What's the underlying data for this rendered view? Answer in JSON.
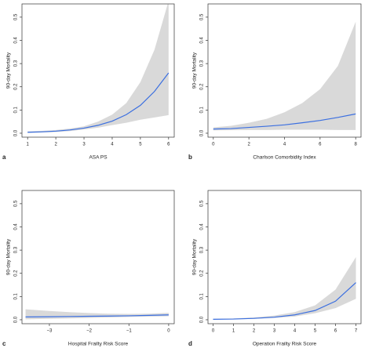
{
  "chart_data": [
    {
      "type": "line",
      "panel_label": "a",
      "x_label": "ASA PS",
      "y_label": "90-day Mortality",
      "color": "#3b6fe0",
      "band_color": "#d9d9d9",
      "x": [
        1,
        1.5,
        2,
        2.5,
        3,
        3.5,
        4,
        4.5,
        5,
        5.5,
        6
      ],
      "values": [
        0.004,
        0.006,
        0.009,
        0.014,
        0.022,
        0.034,
        0.052,
        0.08,
        0.12,
        0.18,
        0.26
      ],
      "upper": [
        0.008,
        0.01,
        0.014,
        0.02,
        0.03,
        0.05,
        0.08,
        0.13,
        0.22,
        0.36,
        0.57
      ],
      "lower": [
        0.001,
        0.003,
        0.005,
        0.009,
        0.016,
        0.024,
        0.035,
        0.045,
        0.058,
        0.068,
        0.078
      ],
      "xlim": [
        0.8,
        6.2
      ],
      "xticks": [
        1,
        2,
        3,
        4,
        5,
        6
      ],
      "ylim": [
        -0.017,
        0.557
      ],
      "yticks": [
        {
          "value": 0,
          "label": "0.0"
        },
        {
          "value": 0.1,
          "label": "0.1"
        },
        {
          "value": 0.2,
          "label": "0.2"
        },
        {
          "value": 0.3,
          "label": "0.3"
        },
        {
          "value": 0.4,
          "label": "0.4"
        },
        {
          "value": 0.5,
          "label": "0.5"
        }
      ]
    },
    {
      "type": "line",
      "panel_label": "b",
      "x_label": "Charlson Comorbidity Index",
      "y_label": "90-day Mortality",
      "color": "#3b6fe0",
      "band_color": "#d9d9d9",
      "x": [
        0,
        1,
        2,
        3,
        4,
        5,
        6,
        7,
        8
      ],
      "values": [
        0.018,
        0.02,
        0.025,
        0.03,
        0.036,
        0.045,
        0.055,
        0.068,
        0.083
      ],
      "upper": [
        0.025,
        0.032,
        0.045,
        0.062,
        0.09,
        0.13,
        0.19,
        0.29,
        0.48
      ],
      "lower": [
        0.012,
        0.013,
        0.014,
        0.014,
        0.015,
        0.015,
        0.015,
        0.014,
        0.014
      ],
      "xlim": [
        -0.3,
        8.3
      ],
      "xticks": [
        0,
        2,
        4,
        6,
        8
      ],
      "ylim": [
        -0.017,
        0.557
      ],
      "yticks": [
        {
          "value": 0,
          "label": "0.0"
        },
        {
          "value": 0.1,
          "label": "0.1"
        },
        {
          "value": 0.2,
          "label": "0.2"
        },
        {
          "value": 0.3,
          "label": "0.3"
        },
        {
          "value": 0.4,
          "label": "0.4"
        },
        {
          "value": 0.5,
          "label": "0.5"
        }
      ]
    },
    {
      "type": "line",
      "panel_label": "c",
      "x_label": "Hospital Frailty Risk Score",
      "y_label": "90-day Mortality",
      "color": "#3b6fe0",
      "band_color": "#d9d9d9",
      "x": [
        -3.6,
        -3,
        -2.5,
        -2,
        -1.5,
        -1,
        -0.5,
        0
      ],
      "values": [
        0.012,
        0.013,
        0.014,
        0.015,
        0.016,
        0.017,
        0.019,
        0.021
      ],
      "upper": [
        0.045,
        0.038,
        0.033,
        0.029,
        0.026,
        0.025,
        0.026,
        0.03
      ],
      "lower": [
        0.002,
        0.004,
        0.006,
        0.008,
        0.01,
        0.012,
        0.014,
        0.015
      ],
      "xlim": [
        -3.69,
        0.14
      ],
      "xticks": [
        {
          "value": -3,
          "label": "−3"
        },
        {
          "value": -2,
          "label": "−2"
        },
        {
          "value": -1,
          "label": "−1"
        },
        0
      ],
      "ylim": [
        -0.017,
        0.557
      ],
      "yticks": [
        {
          "value": 0,
          "label": "0.0"
        },
        {
          "value": 0.1,
          "label": "0.1"
        },
        {
          "value": 0.2,
          "label": "0.2"
        },
        {
          "value": 0.3,
          "label": "0.3"
        },
        {
          "value": 0.4,
          "label": "0.4"
        },
        {
          "value": 0.5,
          "label": "0.5"
        }
      ]
    },
    {
      "type": "line",
      "panel_label": "d",
      "x_label": "Operation Frailty Risk Score",
      "y_label": "90-day Mortality",
      "color": "#3b6fe0",
      "band_color": "#d9d9d9",
      "x": [
        0,
        1,
        2,
        3,
        4,
        5,
        6,
        7
      ],
      "values": [
        0.002,
        0.003,
        0.006,
        0.011,
        0.021,
        0.04,
        0.08,
        0.16
      ],
      "upper": [
        0.004,
        0.006,
        0.01,
        0.018,
        0.033,
        0.062,
        0.13,
        0.27
      ],
      "lower": [
        0.001,
        0.002,
        0.004,
        0.008,
        0.014,
        0.028,
        0.05,
        0.09
      ],
      "xlim": [
        -0.25,
        7.25
      ],
      "xticks": [
        0,
        1,
        2,
        3,
        4,
        5,
        6,
        7
      ],
      "ylim": [
        -0.017,
        0.557
      ],
      "yticks": [
        {
          "value": 0,
          "label": "0.0"
        },
        {
          "value": 0.1,
          "label": "0.1"
        },
        {
          "value": 0.2,
          "label": "0.2"
        },
        {
          "value": 0.3,
          "label": "0.3"
        },
        {
          "value": 0.4,
          "label": "0.4"
        },
        {
          "value": 0.5,
          "label": "0.5"
        }
      ]
    }
  ]
}
